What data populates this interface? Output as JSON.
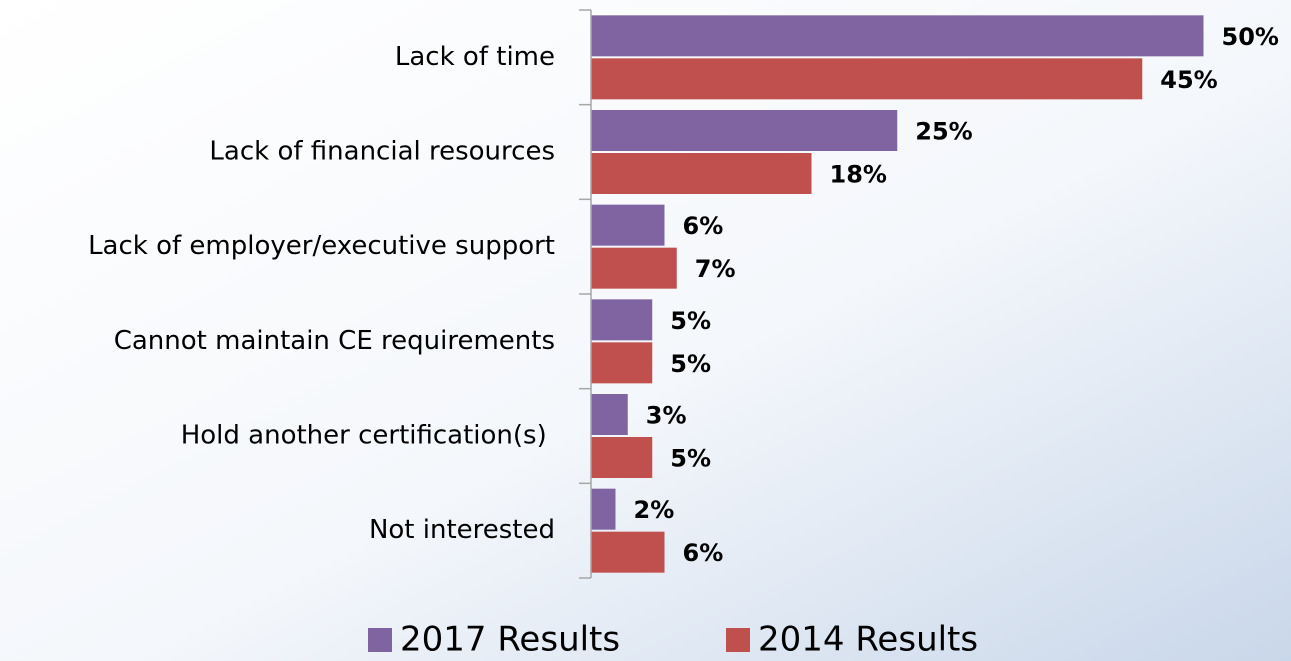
{
  "chart_data": {
    "type": "hbar",
    "categories": [
      "Lack of time",
      "Lack of financial resources",
      "Lack of employer/executive support",
      "Cannot maintain CE requirements",
      "Hold another certification(s) ",
      "Not interested"
    ],
    "series": [
      {
        "name": "2017 Results",
        "color": "#8064a2",
        "values": [
          50,
          25,
          6,
          5,
          3,
          2
        ],
        "value_labels": [
          "50%",
          "25%",
          "6%",
          "5%",
          "3%",
          "2%"
        ]
      },
      {
        "name": "2014 Results",
        "color": "#c0504d",
        "values": [
          45,
          18,
          7,
          5,
          5,
          6
        ],
        "value_labels": [
          "45%",
          "18%",
          "7%",
          "5%",
          "5%",
          "6%"
        ]
      }
    ],
    "legend": "bottom"
  }
}
